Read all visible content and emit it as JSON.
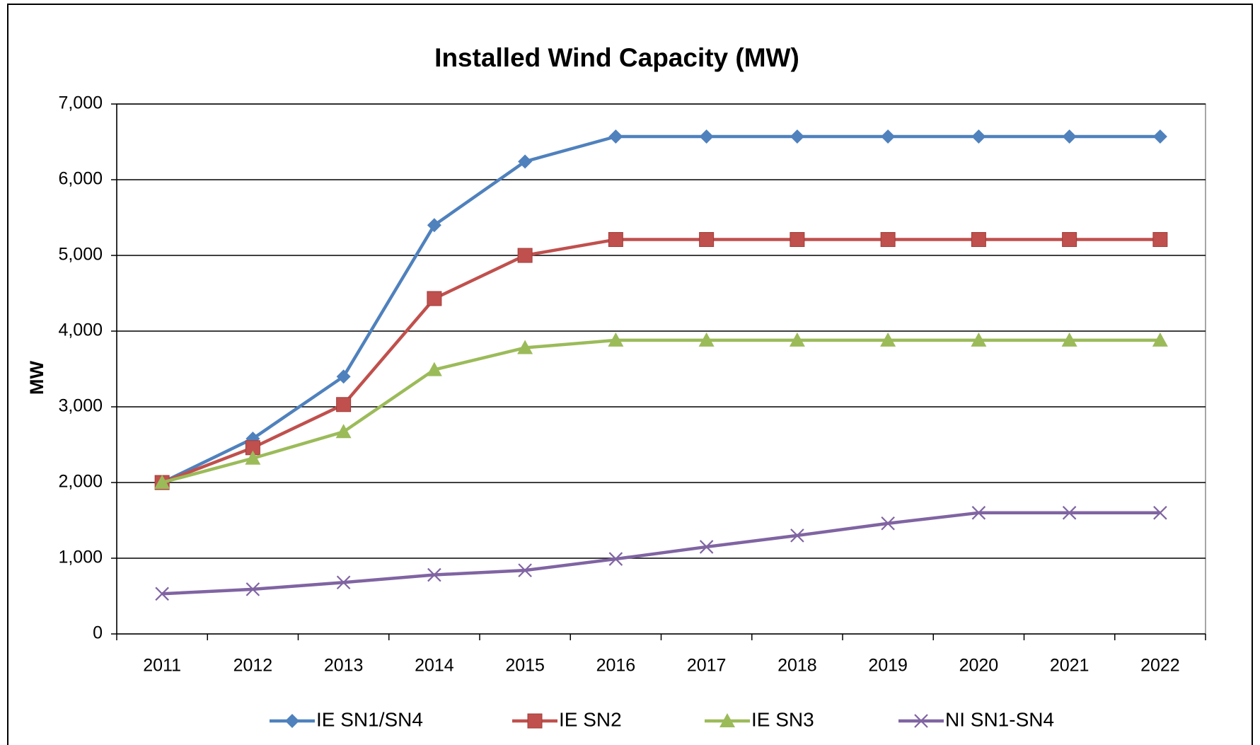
{
  "chart_data": {
    "type": "line",
    "title": "Installed Wind Capacity (MW)",
    "y_label": "MW",
    "categories": [
      "2011",
      "2012",
      "2013",
      "2014",
      "2015",
      "2016",
      "2017",
      "2018",
      "2019",
      "2020",
      "2021",
      "2022"
    ],
    "series": [
      {
        "name": "IE SN1/SN4",
        "color": "#4f81bd",
        "marker": "diamond",
        "values": [
          2000,
          2580,
          3400,
          5400,
          6240,
          6570,
          6570,
          6570,
          6570,
          6570,
          6570,
          6570
        ]
      },
      {
        "name": "IE SN2",
        "color": "#c0504d",
        "marker": "square",
        "values": [
          2000,
          2460,
          3030,
          4430,
          5000,
          5210,
          5210,
          5210,
          5210,
          5210,
          5210,
          5210
        ]
      },
      {
        "name": "IE SN3",
        "color": "#9bbb59",
        "marker": "triangle",
        "values": [
          2000,
          2320,
          2670,
          3490,
          3780,
          3880,
          3880,
          3880,
          3880,
          3880,
          3880,
          3880
        ]
      },
      {
        "name": "NI SN1-SN4",
        "color": "#8064a2",
        "marker": "x",
        "values": [
          530,
          590,
          680,
          780,
          840,
          990,
          1150,
          1300,
          1460,
          1600,
          1600,
          1600
        ]
      }
    ],
    "ylim": [
      0,
      7000
    ],
    "yticks": [
      0,
      {
        "value": 1000,
        "label": "1,000"
      },
      {
        "value": 2000,
        "label": "2,000"
      },
      {
        "value": 3000,
        "label": "3,000"
      },
      {
        "value": 4000,
        "label": "4,000"
      },
      {
        "value": 5000,
        "label": "5,000"
      },
      {
        "value": 6000,
        "label": "6,000"
      },
      {
        "value": 7000,
        "label": "7,000"
      }
    ],
    "grid": true,
    "legend": "bottom"
  }
}
